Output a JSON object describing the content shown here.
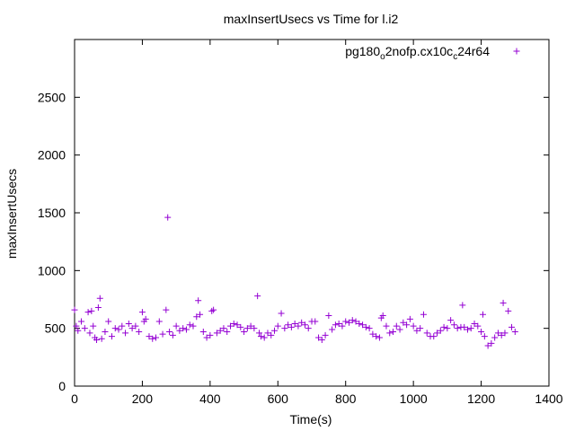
{
  "chart_data": {
    "type": "scatter",
    "title": "maxInsertUsecs vs Time for l.i2",
    "xlabel": "Time(s)",
    "ylabel": "maxInsertUsecs",
    "xlim": [
      0,
      1400
    ],
    "ylim": [
      0,
      3000
    ],
    "xticks": [
      "0",
      "200",
      "400",
      "600",
      "800",
      "1000",
      "1200",
      "1400"
    ],
    "yticks": [
      "0",
      "500",
      "1000",
      "1500",
      "2000",
      "2500"
    ],
    "xtick_values": [
      0,
      200,
      400,
      600,
      800,
      1000,
      1200,
      1400
    ],
    "ytick_values": [
      0,
      500,
      1000,
      1500,
      2000,
      2500
    ],
    "grid": false,
    "legend_position": "top-right",
    "marker": "+",
    "series": [
      {
        "name": "pg180_o2nofp.cx10c_c24r64",
        "legend_parts": [
          {
            "text": "pg180",
            "sub": false
          },
          {
            "text": "o",
            "sub": true
          },
          {
            "text": "2nofp.cx10c",
            "sub": false
          },
          {
            "text": "c",
            "sub": true
          },
          {
            "text": "24r64",
            "sub": false
          }
        ],
        "color": "#9400d3",
        "points": [
          [
            0,
            660
          ],
          [
            5,
            520
          ],
          [
            10,
            480
          ],
          [
            20,
            560
          ],
          [
            30,
            500
          ],
          [
            40,
            640
          ],
          [
            45,
            460
          ],
          [
            50,
            650
          ],
          [
            55,
            520
          ],
          [
            60,
            420
          ],
          [
            65,
            400
          ],
          [
            70,
            680
          ],
          [
            75,
            760
          ],
          [
            80,
            410
          ],
          [
            90,
            470
          ],
          [
            100,
            560
          ],
          [
            110,
            430
          ],
          [
            120,
            500
          ],
          [
            130,
            490
          ],
          [
            140,
            520
          ],
          [
            150,
            460
          ],
          [
            160,
            540
          ],
          [
            170,
            500
          ],
          [
            180,
            520
          ],
          [
            190,
            470
          ],
          [
            200,
            640
          ],
          [
            205,
            560
          ],
          [
            210,
            580
          ],
          [
            220,
            430
          ],
          [
            230,
            410
          ],
          [
            240,
            420
          ],
          [
            250,
            560
          ],
          [
            260,
            450
          ],
          [
            270,
            660
          ],
          [
            275,
            1460
          ],
          [
            280,
            470
          ],
          [
            290,
            440
          ],
          [
            300,
            520
          ],
          [
            310,
            480
          ],
          [
            320,
            500
          ],
          [
            330,
            490
          ],
          [
            340,
            530
          ],
          [
            350,
            520
          ],
          [
            360,
            600
          ],
          [
            365,
            740
          ],
          [
            370,
            620
          ],
          [
            380,
            470
          ],
          [
            390,
            420
          ],
          [
            400,
            440
          ],
          [
            405,
            650
          ],
          [
            410,
            660
          ],
          [
            420,
            460
          ],
          [
            430,
            480
          ],
          [
            440,
            500
          ],
          [
            450,
            470
          ],
          [
            460,
            520
          ],
          [
            470,
            540
          ],
          [
            480,
            530
          ],
          [
            490,
            510
          ],
          [
            500,
            470
          ],
          [
            510,
            500
          ],
          [
            520,
            520
          ],
          [
            530,
            500
          ],
          [
            540,
            780
          ],
          [
            545,
            460
          ],
          [
            550,
            430
          ],
          [
            560,
            420
          ],
          [
            570,
            460
          ],
          [
            580,
            440
          ],
          [
            590,
            480
          ],
          [
            600,
            520
          ],
          [
            610,
            630
          ],
          [
            620,
            500
          ],
          [
            630,
            530
          ],
          [
            640,
            510
          ],
          [
            650,
            540
          ],
          [
            660,
            520
          ],
          [
            670,
            550
          ],
          [
            680,
            530
          ],
          [
            690,
            500
          ],
          [
            700,
            560
          ],
          [
            710,
            560
          ],
          [
            720,
            420
          ],
          [
            730,
            400
          ],
          [
            740,
            440
          ],
          [
            750,
            610
          ],
          [
            760,
            490
          ],
          [
            770,
            530
          ],
          [
            780,
            540
          ],
          [
            790,
            520
          ],
          [
            800,
            560
          ],
          [
            810,
            550
          ],
          [
            820,
            570
          ],
          [
            830,
            560
          ],
          [
            840,
            540
          ],
          [
            850,
            530
          ],
          [
            860,
            510
          ],
          [
            870,
            500
          ],
          [
            880,
            450
          ],
          [
            890,
            430
          ],
          [
            900,
            420
          ],
          [
            905,
            590
          ],
          [
            910,
            610
          ],
          [
            920,
            520
          ],
          [
            930,
            460
          ],
          [
            940,
            470
          ],
          [
            950,
            520
          ],
          [
            960,
            490
          ],
          [
            970,
            550
          ],
          [
            980,
            530
          ],
          [
            990,
            580
          ],
          [
            1000,
            520
          ],
          [
            1010,
            480
          ],
          [
            1020,
            500
          ],
          [
            1030,
            620
          ],
          [
            1040,
            460
          ],
          [
            1050,
            430
          ],
          [
            1060,
            430
          ],
          [
            1070,
            460
          ],
          [
            1080,
            480
          ],
          [
            1090,
            510
          ],
          [
            1100,
            500
          ],
          [
            1110,
            570
          ],
          [
            1120,
            530
          ],
          [
            1130,
            500
          ],
          [
            1140,
            510
          ],
          [
            1145,
            700
          ],
          [
            1150,
            510
          ],
          [
            1160,
            490
          ],
          [
            1170,
            500
          ],
          [
            1180,
            540
          ],
          [
            1190,
            520
          ],
          [
            1200,
            470
          ],
          [
            1205,
            620
          ],
          [
            1210,
            430
          ],
          [
            1220,
            350
          ],
          [
            1230,
            370
          ],
          [
            1240,
            420
          ],
          [
            1250,
            460
          ],
          [
            1260,
            440
          ],
          [
            1265,
            720
          ],
          [
            1270,
            460
          ],
          [
            1280,
            650
          ],
          [
            1290,
            510
          ],
          [
            1300,
            470
          ]
        ]
      }
    ]
  }
}
